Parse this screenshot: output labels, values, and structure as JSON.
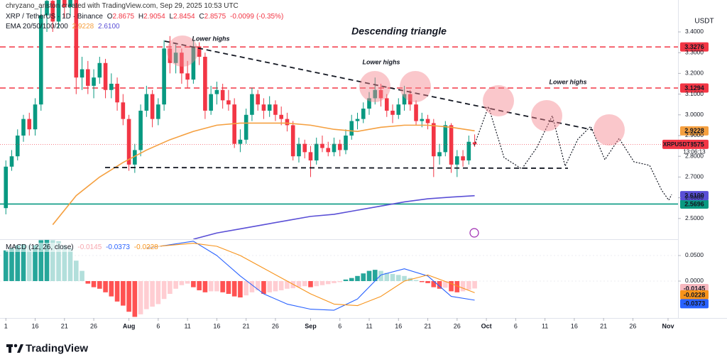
{
  "header": {
    "credit": "chryzano_ariston created with TradingView.com, Sep 29, 2025 10:53 UTC",
    "symbol": "XRP / TetherUS · 1D · Binance",
    "ohlc_letters": [
      "O",
      "H",
      "L",
      "C"
    ],
    "change": -0.0099,
    "change_pct": "(-0.35%)",
    "ema_label": "EMA 20/50/100/200",
    "macd_label": "MACD (12, 26, close)"
  },
  "footer": {
    "brand": "TradingView"
  },
  "chart_data": [
    {
      "type": "candlestick",
      "title": "Descending triangle",
      "annotations": [
        "Lower highs",
        "Lower highs",
        "Lower highs"
      ],
      "currency": "USDT",
      "up_color": "#089981",
      "down_color": "#f23645",
      "xlim": [
        -1,
        114.7
      ],
      "ylim": [
        2.4,
        3.554
      ],
      "xticks": [
        {
          "value": 0,
          "label": "1"
        },
        {
          "value": 5,
          "label": "16"
        },
        {
          "value": 10,
          "label": "21"
        },
        {
          "value": 15,
          "label": "26"
        },
        {
          "value": 21,
          "label": "Aug"
        },
        {
          "value": 26,
          "label": "6"
        },
        {
          "value": 31,
          "label": "11"
        },
        {
          "value": 36,
          "label": "16"
        },
        {
          "value": 41,
          "label": "21"
        },
        {
          "value": 46,
          "label": "26"
        },
        {
          "value": 52,
          "label": "Sep"
        },
        {
          "value": 57,
          "label": "6"
        },
        {
          "value": 62,
          "label": "11"
        },
        {
          "value": 67,
          "label": "16"
        },
        {
          "value": 72,
          "label": "21"
        },
        {
          "value": 77,
          "label": "26"
        },
        {
          "value": 82,
          "label": "Oct"
        },
        {
          "value": 87,
          "label": "6"
        },
        {
          "value": 92,
          "label": "11"
        },
        {
          "value": 97,
          "label": "16"
        },
        {
          "value": 102,
          "label": "21"
        },
        {
          "value": 107,
          "label": "26"
        },
        {
          "value": 113,
          "label": "Nov"
        }
      ],
      "yticks": [
        {
          "value": 2.5,
          "label": "2.5000"
        },
        {
          "value": 2.6,
          "label": "2.6000"
        },
        {
          "value": 2.7,
          "label": "2.7000"
        },
        {
          "value": 2.8,
          "label": "2.8000"
        },
        {
          "value": 2.9,
          "label": "2.9000"
        },
        {
          "value": 3.0,
          "label": "3.0000"
        },
        {
          "value": 3.1,
          "label": "3.1000"
        },
        {
          "value": 3.2,
          "label": "3.2000"
        },
        {
          "value": 3.3,
          "label": "3.3000"
        },
        {
          "value": 3.4,
          "label": "3.4000"
        }
      ],
      "candles": [
        [
          2.55,
          2.78,
          2.52,
          2.75
        ],
        [
          2.75,
          2.83,
          2.73,
          2.8
        ],
        [
          2.8,
          2.93,
          2.78,
          2.9
        ],
        [
          2.9,
          3.0,
          2.87,
          2.98
        ],
        [
          2.98,
          3.01,
          2.9,
          2.93
        ],
        [
          2.93,
          3.08,
          2.9,
          3.05
        ],
        [
          3.05,
          3.52,
          3.02,
          3.48
        ],
        [
          3.48,
          3.6,
          3.4,
          3.55
        ],
        [
          3.55,
          3.62,
          3.4,
          3.45
        ],
        [
          3.45,
          3.62,
          3.42,
          3.58
        ],
        [
          3.58,
          3.64,
          3.47,
          3.52
        ],
        [
          3.52,
          3.66,
          3.48,
          3.6
        ],
        [
          3.6,
          3.62,
          3.1,
          3.18
        ],
        [
          3.18,
          3.28,
          3.12,
          3.22
        ],
        [
          3.22,
          3.26,
          3.1,
          3.14
        ],
        [
          3.14,
          3.22,
          3.08,
          3.18
        ],
        [
          3.18,
          3.28,
          3.15,
          3.25
        ],
        [
          3.25,
          3.27,
          3.08,
          3.12
        ],
        [
          3.12,
          3.2,
          3.08,
          3.15
        ],
        [
          3.15,
          3.18,
          3.02,
          3.06
        ],
        [
          3.06,
          3.1,
          2.95,
          2.98
        ],
        [
          2.98,
          3.0,
          2.73,
          2.76
        ],
        [
          2.76,
          2.86,
          2.72,
          2.83
        ],
        [
          2.83,
          3.05,
          2.8,
          3.02
        ],
        [
          3.02,
          3.14,
          2.99,
          3.1
        ],
        [
          3.1,
          3.12,
          2.94,
          2.98
        ],
        [
          2.98,
          3.08,
          2.95,
          3.05
        ],
        [
          3.05,
          3.36,
          3.02,
          3.32
        ],
        [
          3.32,
          3.38,
          3.2,
          3.25
        ],
        [
          3.25,
          3.34,
          3.2,
          3.3
        ],
        [
          3.3,
          3.32,
          3.15,
          3.2
        ],
        [
          3.2,
          3.26,
          3.13,
          3.17
        ],
        [
          3.17,
          3.36,
          3.15,
          3.33
        ],
        [
          3.33,
          3.35,
          3.24,
          3.28
        ],
        [
          3.28,
          3.3,
          2.98,
          3.02
        ],
        [
          3.02,
          3.14,
          3.0,
          3.1
        ],
        [
          3.1,
          3.16,
          3.05,
          3.12
        ],
        [
          3.12,
          3.15,
          3.03,
          3.07
        ],
        [
          3.07,
          3.12,
          3.02,
          3.05
        ],
        [
          3.05,
          3.08,
          2.84,
          2.86
        ],
        [
          2.86,
          2.93,
          2.82,
          2.88
        ],
        [
          2.88,
          3.03,
          2.86,
          3.0
        ],
        [
          3.0,
          3.13,
          2.97,
          3.1
        ],
        [
          3.1,
          3.12,
          3.02,
          3.05
        ],
        [
          3.05,
          3.08,
          2.98,
          3.02
        ],
        [
          3.02,
          3.09,
          2.99,
          3.05
        ],
        [
          3.05,
          3.07,
          2.97,
          3.0
        ],
        [
          3.0,
          3.04,
          2.95,
          2.98
        ],
        [
          2.98,
          3.01,
          2.92,
          2.95
        ],
        [
          2.95,
          2.97,
          2.78,
          2.8
        ],
        [
          2.8,
          2.89,
          2.77,
          2.86
        ],
        [
          2.86,
          2.88,
          2.79,
          2.82
        ],
        [
          2.82,
          2.85,
          2.7,
          2.78
        ],
        [
          2.78,
          2.89,
          2.76,
          2.86
        ],
        [
          2.86,
          2.9,
          2.82,
          2.84
        ],
        [
          2.84,
          2.87,
          2.8,
          2.82
        ],
        [
          2.82,
          2.89,
          2.8,
          2.86
        ],
        [
          2.86,
          2.88,
          2.8,
          2.83
        ],
        [
          2.83,
          2.93,
          2.81,
          2.9
        ],
        [
          2.9,
          3.0,
          2.88,
          2.97
        ],
        [
          2.97,
          3.01,
          2.93,
          2.98
        ],
        [
          2.98,
          3.06,
          2.96,
          3.03
        ],
        [
          3.03,
          3.11,
          3.0,
          3.08
        ],
        [
          3.08,
          3.18,
          3.05,
          3.12
        ],
        [
          3.12,
          3.15,
          3.04,
          3.08
        ],
        [
          3.08,
          3.1,
          2.99,
          3.02
        ],
        [
          3.02,
          3.05,
          2.96,
          3.0
        ],
        [
          3.0,
          3.08,
          2.98,
          3.05
        ],
        [
          3.05,
          3.14,
          3.02,
          3.1
        ],
        [
          3.1,
          3.12,
          3.02,
          3.05
        ],
        [
          3.05,
          3.07,
          2.95,
          2.97
        ],
        [
          2.97,
          3.01,
          2.94,
          2.98
        ],
        [
          2.98,
          3.0,
          2.93,
          2.96
        ],
        [
          2.96,
          2.98,
          2.7,
          2.8
        ],
        [
          2.8,
          2.86,
          2.76,
          2.82
        ],
        [
          2.82,
          2.97,
          2.8,
          2.95
        ],
        [
          2.95,
          2.96,
          2.72,
          2.76
        ],
        [
          2.76,
          2.83,
          2.7,
          2.8
        ],
        [
          2.8,
          2.83,
          2.75,
          2.78
        ],
        [
          2.78,
          2.9,
          2.76,
          2.87
        ],
        [
          2.8675,
          2.9054,
          2.8454,
          2.8575
        ]
      ],
      "series": [
        {
          "color": "#f5a040",
          "x": [
            0,
            4,
            8,
            12,
            16,
            20,
            24,
            28,
            32,
            36,
            40,
            44,
            48,
            52,
            56,
            60,
            64,
            68,
            72,
            76,
            80
          ],
          "values": [
            null,
            null,
            2.47,
            2.61,
            2.7,
            2.77,
            2.83,
            2.88,
            2.92,
            2.95,
            2.96,
            2.96,
            2.96,
            2.95,
            2.93,
            2.92,
            2.94,
            2.95,
            2.95,
            2.94,
            2.9228
          ]
        },
        {
          "color": "#5a4fd6",
          "last_label": "2.6100",
          "x": [
            32,
            36,
            40,
            44,
            48,
            52,
            56,
            60,
            64,
            68,
            72,
            76,
            80
          ],
          "values": [
            2.4,
            2.43,
            2.45,
            2.47,
            2.49,
            2.51,
            2.52,
            2.54,
            2.56,
            2.58,
            2.595,
            2.603,
            2.61
          ]
        }
      ],
      "levels": [
        {
          "value": 3.3276,
          "color": "#f23645",
          "dashed": true
        },
        {
          "value": 3.1294,
          "color": "#f23645",
          "dashed": true
        },
        {
          "value": 2.5696,
          "color": "#089981",
          "dashed": false
        }
      ],
      "symbol_tag": "XRPUSDT",
      "countdown": "13:06:13",
      "last_color": "#f23645"
    },
    {
      "type": "macd",
      "ylim": [
        -0.0722,
        0.0819
      ],
      "yticks": [
        {
          "value": 0.05,
          "label": "0.0500"
        },
        {
          "value": 0,
          "label": "0.0000"
        }
      ],
      "hist_colors": [
        "#26a69a",
        "#b2dfdb",
        "#ff5252",
        "#ffcdd2"
      ],
      "values": [
        0.06,
        0.065,
        0.07,
        0.072,
        0.07,
        0.07,
        0.08,
        0.085,
        0.08,
        0.078,
        0.07,
        0.065,
        0.04,
        0.02,
        -0.005,
        -0.012,
        -0.015,
        -0.022,
        -0.03,
        -0.04,
        -0.048,
        -0.06,
        -0.07,
        -0.065,
        -0.055,
        -0.05,
        -0.045,
        -0.035,
        -0.025,
        -0.015,
        -0.008,
        -0.005,
        -0.012,
        -0.018,
        -0.022,
        -0.02,
        -0.02,
        -0.022,
        -0.025,
        -0.03,
        -0.032,
        -0.028,
        -0.022,
        -0.018,
        -0.025,
        -0.022,
        -0.02,
        -0.018,
        -0.015,
        -0.014,
        -0.012,
        -0.01,
        -0.012,
        -0.01,
        -0.008,
        -0.006,
        -0.004,
        -0.002,
        0.003,
        0.006,
        0.01,
        0.015,
        0.02,
        0.022,
        0.02,
        0.016,
        0.014,
        0.012,
        0.01,
        0.006,
        0.002,
        -0.002,
        -0.004,
        -0.012,
        -0.015,
        -0.013,
        -0.02,
        -0.022,
        -0.02,
        -0.017,
        -0.0145
      ],
      "series": [
        {
          "color": "#2962ff",
          "x": [
            24,
            28,
            32,
            36,
            40,
            44,
            48,
            52,
            56,
            60,
            64,
            68,
            72,
            76,
            80
          ],
          "values": [
            0.064,
            0.071,
            0.078,
            0.05,
            0.01,
            -0.025,
            -0.045,
            -0.055,
            -0.057,
            -0.035,
            0.012,
            0.024,
            0.01,
            -0.03,
            -0.0373
          ]
        },
        {
          "color": "#f7931a",
          "x": [
            24,
            28,
            32,
            36,
            40,
            44,
            48,
            52,
            56,
            60,
            64,
            68,
            72,
            76,
            80
          ],
          "values": [
            0.066,
            0.07,
            0.074,
            0.068,
            0.05,
            0.025,
            0.0,
            -0.025,
            -0.045,
            -0.048,
            -0.03,
            0.0,
            0.012,
            -0.005,
            -0.0228
          ]
        }
      ]
    }
  ]
}
